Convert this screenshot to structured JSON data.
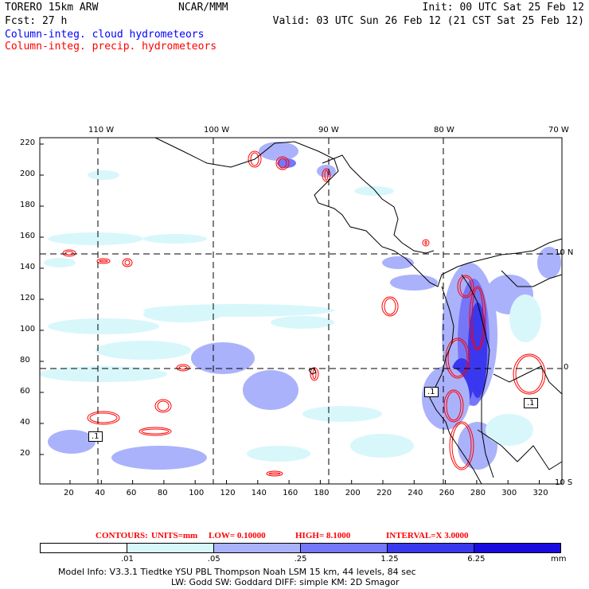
{
  "header": {
    "model": "TORERO  15km ARW",
    "org": "NCAR/MMM",
    "init": "Init: 00 UTC Sat 25 Feb 12",
    "fcst": "Fcst:   27 h",
    "valid": "Valid: 03 UTC Sun 26 Feb 12 (21 CST Sat 25 Feb 12)",
    "field1": "Column-integ. cloud hydrometeors",
    "field2": "Column-integ. precip. hydrometeors"
  },
  "map": {
    "lon_labels": [
      "110 W",
      "100 W",
      "90 W",
      "80 W",
      "70 W"
    ],
    "lat_labels": [
      "10 N",
      "0",
      "10 S"
    ],
    "x_ticks": [
      "20",
      "40",
      "60",
      "80",
      "100",
      "120",
      "140",
      "160",
      "180",
      "200",
      "220",
      "240",
      "260",
      "280",
      "300",
      "320"
    ],
    "y_ticks": [
      "220",
      "200",
      "180",
      "160",
      "140",
      "120",
      "100",
      "80",
      "60",
      "40",
      "20"
    ],
    "contour_labels": [
      ".1",
      ".1",
      ".1"
    ]
  },
  "contours_info": {
    "label": "CONTOURS:",
    "units": "UNITS=mm",
    "low": "LOW= 0.10000",
    "high": "HIGH=   8.1000",
    "interval": "INTERVAL=X  3.0000"
  },
  "colorbar": {
    "colors": [
      "#ffffff",
      "#d8f7fb",
      "#aab2fb",
      "#7676f9",
      "#3a38ee",
      "#1a0ae2"
    ],
    "labels": [
      ".01",
      ".05",
      ".25",
      "1.25",
      "6.25"
    ],
    "units": "mm"
  },
  "footer": {
    "line1": "Model Info: V3.3.1    Tiedtke YSU PBL  Thompson    Noah LSM  15 km,    44 levels,    84 sec",
    "line2": "LW: Godd SW: Goddard DIFF: simple KM: 2D Smagor"
  }
}
